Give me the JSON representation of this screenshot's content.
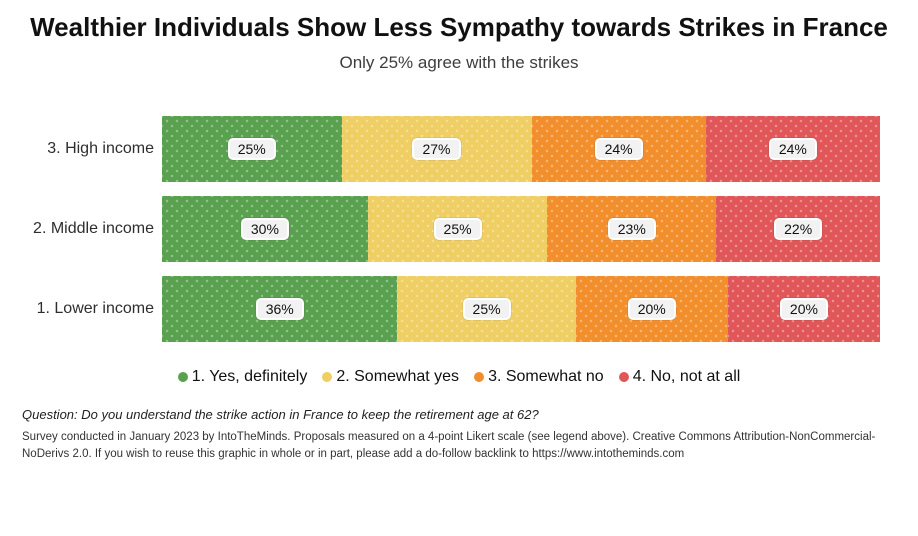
{
  "header": {
    "title": "Wealthier Individuals Show Less Sympathy towards Strikes in France",
    "subtitle": "Only 25% agree with the strikes"
  },
  "chart_data": {
    "type": "bar",
    "orientation": "horizontal",
    "stacked": true,
    "stacked_mode": "percent",
    "title": "Wealthier Individuals Show Less Sympathy towards Strikes in France",
    "subtitle": "Only 25% agree with the strikes",
    "categories": [
      "3. High income",
      "2. Middle income",
      "1. Lower income"
    ],
    "series": [
      {
        "name": "1. Yes, definitely",
        "color": "#59a14f",
        "values": [
          25,
          30,
          36
        ]
      },
      {
        "name": "2. Somewhat yes",
        "color": "#efce63",
        "values": [
          27,
          25,
          25
        ]
      },
      {
        "name": "3. Somewhat no",
        "color": "#f28e2b",
        "values": [
          24,
          23,
          20
        ]
      },
      {
        "name": "4. No, not at all",
        "color": "#e15759",
        "values": [
          24,
          22,
          20
        ]
      }
    ],
    "value_suffix": "%",
    "xlim": [
      0,
      100
    ],
    "grid": false,
    "legend_position": "bottom",
    "data_labels": true
  },
  "footer": {
    "question": "Question: Do you understand the strike action in France to keep the retirement age at 62?",
    "attribution": "Survey conducted in January 2023 by IntoTheMinds. Proposals measured on a 4-point Likert scale (see legend above). Creative Commons Attribution-NonCommercial-NoDerivs 2.0. If you wish to reuse this graphic in whole or in part, please add a do-follow backlink to https://www.intotheminds.com"
  }
}
